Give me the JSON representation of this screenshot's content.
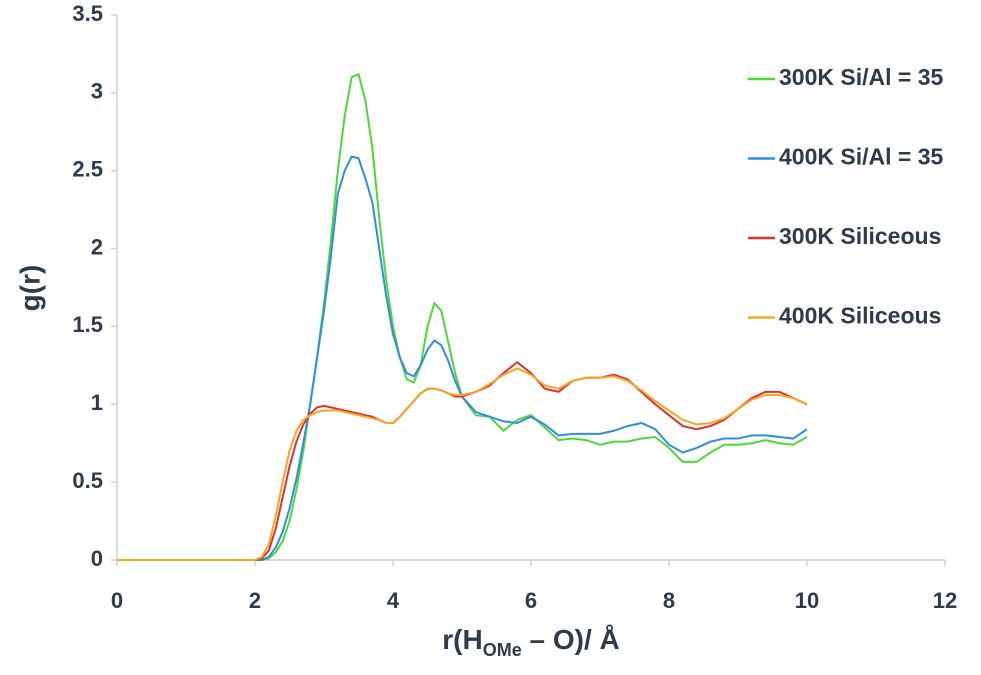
{
  "chart_data": {
    "type": "line",
    "y_label": "g(r)",
    "x_label_parts": [
      "r(H",
      "OMe",
      " – O)/  Å"
    ],
    "x": [
      0,
      1,
      2.0,
      2.1,
      2.2,
      2.3,
      2.4,
      2.5,
      2.6,
      2.7,
      2.8,
      2.9,
      3.0,
      3.1,
      3.2,
      3.3,
      3.4,
      3.5,
      3.6,
      3.7,
      3.8,
      3.9,
      4.0,
      4.1,
      4.2,
      4.3,
      4.4,
      4.5,
      4.6,
      4.7,
      4.8,
      4.9,
      5.0,
      5.2,
      5.4,
      5.6,
      5.8,
      6.0,
      6.2,
      6.4,
      6.6,
      6.8,
      7.0,
      7.2,
      7.4,
      7.6,
      7.8,
      8.0,
      8.2,
      8.4,
      8.6,
      8.8,
      9.0,
      9.2,
      9.4,
      9.6,
      9.8,
      10.0
    ],
    "series": [
      {
        "name": "300K Si/Al = 35",
        "color": "#4dd83a",
        "values": [
          0,
          0,
          0,
          0,
          0.01,
          0.05,
          0.12,
          0.25,
          0.45,
          0.7,
          1.0,
          1.3,
          1.65,
          2.05,
          2.5,
          2.85,
          3.1,
          3.12,
          2.95,
          2.65,
          2.2,
          1.8,
          1.5,
          1.3,
          1.16,
          1.14,
          1.25,
          1.5,
          1.65,
          1.6,
          1.4,
          1.2,
          1.05,
          0.93,
          0.92,
          0.83,
          0.9,
          0.93,
          0.85,
          0.77,
          0.78,
          0.77,
          0.74,
          0.76,
          0.76,
          0.78,
          0.79,
          0.72,
          0.63,
          0.63,
          0.69,
          0.74,
          0.74,
          0.75,
          0.77,
          0.75,
          0.74,
          0.79
        ]
      },
      {
        "name": "400K Si/Al = 35",
        "color": "#2f8ee0",
        "values": [
          0,
          0,
          0,
          0,
          0.02,
          0.08,
          0.18,
          0.33,
          0.52,
          0.75,
          1.0,
          1.3,
          1.6,
          1.95,
          2.35,
          2.5,
          2.59,
          2.58,
          2.45,
          2.3,
          2.0,
          1.7,
          1.45,
          1.3,
          1.2,
          1.18,
          1.25,
          1.35,
          1.41,
          1.38,
          1.28,
          1.15,
          1.05,
          0.95,
          0.92,
          0.89,
          0.88,
          0.92,
          0.87,
          0.8,
          0.81,
          0.81,
          0.81,
          0.83,
          0.86,
          0.88,
          0.84,
          0.74,
          0.69,
          0.72,
          0.76,
          0.78,
          0.78,
          0.8,
          0.8,
          0.79,
          0.78,
          0.84
        ]
      },
      {
        "name": "300K Siliceous",
        "color": "#e0302c",
        "values": [
          0,
          0,
          0,
          0.01,
          0.06,
          0.2,
          0.4,
          0.6,
          0.76,
          0.87,
          0.94,
          0.98,
          0.99,
          0.98,
          0.97,
          0.96,
          0.95,
          0.94,
          0.93,
          0.92,
          0.9,
          0.88,
          0.88,
          0.92,
          0.97,
          1.02,
          1.07,
          1.1,
          1.1,
          1.09,
          1.07,
          1.05,
          1.05,
          1.08,
          1.12,
          1.2,
          1.27,
          1.2,
          1.1,
          1.08,
          1.15,
          1.17,
          1.17,
          1.19,
          1.16,
          1.08,
          1.0,
          0.93,
          0.86,
          0.84,
          0.86,
          0.9,
          0.97,
          1.04,
          1.08,
          1.08,
          1.04,
          1.0
        ]
      },
      {
        "name": "400K Siliceous",
        "color": "#f5a623",
        "values": [
          0,
          0,
          0,
          0.02,
          0.1,
          0.28,
          0.5,
          0.7,
          0.83,
          0.9,
          0.93,
          0.95,
          0.96,
          0.96,
          0.96,
          0.95,
          0.94,
          0.93,
          0.92,
          0.91,
          0.9,
          0.88,
          0.88,
          0.92,
          0.97,
          1.02,
          1.07,
          1.1,
          1.1,
          1.09,
          1.07,
          1.06,
          1.06,
          1.08,
          1.13,
          1.19,
          1.23,
          1.19,
          1.12,
          1.1,
          1.15,
          1.17,
          1.17,
          1.18,
          1.15,
          1.09,
          1.02,
          0.96,
          0.9,
          0.87,
          0.88,
          0.91,
          0.97,
          1.03,
          1.06,
          1.06,
          1.04,
          1.0
        ]
      }
    ],
    "xlim": [
      0,
      12
    ],
    "xticks": [
      0,
      2,
      4,
      6,
      8,
      10,
      12
    ],
    "ylim": [
      0,
      3.5
    ],
    "yticks": [
      0,
      0.5,
      1,
      1.5,
      2,
      2.5,
      3,
      3.5
    ],
    "grid": false,
    "legend": "right"
  }
}
